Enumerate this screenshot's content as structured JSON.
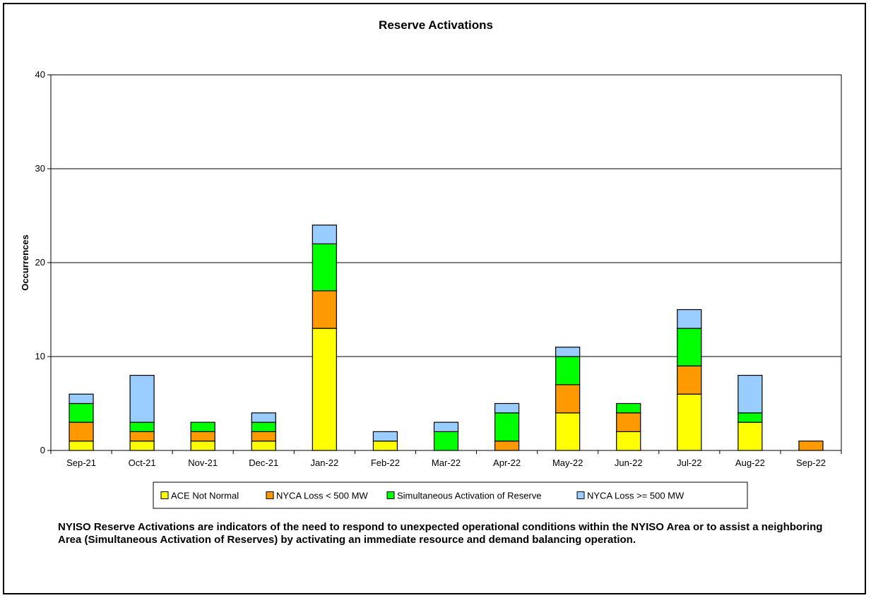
{
  "chart_data": {
    "type": "bar",
    "stacked": true,
    "title": "Reserve Activations",
    "xlabel": "",
    "ylabel": "Occurrences",
    "ylim": [
      0,
      40
    ],
    "yticks": [
      0,
      10,
      20,
      30,
      40
    ],
    "grid": true,
    "legend_position": "bottom",
    "categories": [
      "Sep-21",
      "Oct-21",
      "Nov-21",
      "Dec-21",
      "Jan-22",
      "Feb-22",
      "Mar-22",
      "Apr-22",
      "May-22",
      "Jun-22",
      "Jul-22",
      "Aug-22",
      "Sep-22"
    ],
    "series": [
      {
        "name": "ACE Not Normal",
        "color": "#ffff00",
        "values": [
          1,
          1,
          1,
          1,
          13,
          1,
          0,
          0,
          4,
          2,
          6,
          3,
          0
        ]
      },
      {
        "name": "NYCA Loss < 500 MW",
        "color": "#ff9900",
        "values": [
          2,
          1,
          1,
          1,
          4,
          0,
          0,
          1,
          3,
          2,
          3,
          0,
          1
        ]
      },
      {
        "name": "Simultaneous Activation of Reserve",
        "color": "#00ff00",
        "values": [
          2,
          1,
          1,
          1,
          5,
          0,
          2,
          3,
          3,
          1,
          4,
          1,
          0
        ]
      },
      {
        "name": "NYCA Loss >= 500 MW",
        "color": "#99ccff",
        "values": [
          1,
          5,
          0,
          1,
          2,
          1,
          1,
          1,
          1,
          0,
          2,
          4,
          0
        ]
      }
    ]
  },
  "footnote": "NYISO Reserve Activations are indicators of the need to respond to unexpected operational conditions within the NYISO Area or to assist a neighboring Area (Simultaneous Activation of Reserves) by activating an immediate resource and demand balancing operation."
}
